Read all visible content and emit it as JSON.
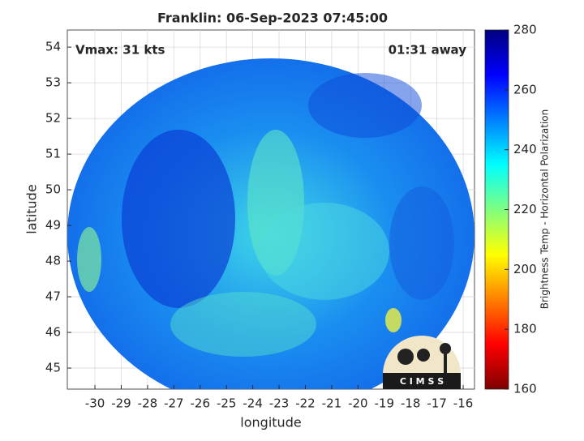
{
  "chart_data": {
    "type": "heatmap",
    "title": "Franklin: 06-Sep-2023 07:45:00",
    "x_label": "longitude",
    "y_label": "latitude",
    "annotations": [
      "Vmax: 31 kts",
      "01:31 away"
    ],
    "logo": "C I M S S",
    "xlim": [
      -31.05,
      -15.57
    ],
    "ylim": [
      44.41,
      54.48
    ],
    "xticks": [
      -30,
      -29,
      -28,
      -27,
      -26,
      -25,
      -24,
      -23,
      -22,
      -21,
      -20,
      -19,
      -18,
      -17,
      -16
    ],
    "yticks": [
      45,
      46,
      47,
      48,
      49,
      50,
      51,
      52,
      53,
      54
    ],
    "grid": true,
    "colorbar": {
      "label": "Brightness Temp - Horizontal Polarization",
      "lim": [
        160,
        280
      ],
      "ticks": [
        160,
        180,
        200,
        220,
        240,
        260,
        280
      ],
      "colormap": [
        "#800000",
        "#ff0000",
        "#ff8000",
        "#ffff00",
        "#80ff80",
        "#00ffff",
        "#0080ff",
        "#0000ff",
        "#000080"
      ]
    }
  }
}
